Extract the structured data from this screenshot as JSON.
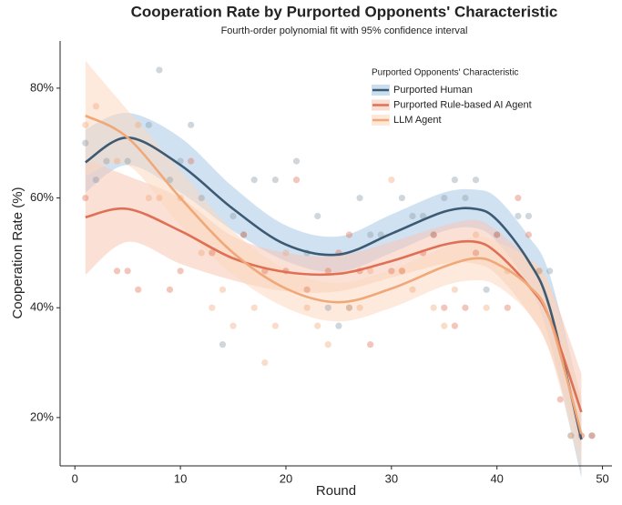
{
  "chart_data": {
    "type": "line",
    "title": "Cooperation Rate by Purported Opponents' Characteristic",
    "subtitle": "Fourth-order polynomial fit with 95% confidence interval",
    "x_label": "Round",
    "y_label": "Cooperation Rate (%)",
    "legend_title": "Purported Opponents' Characteristic",
    "legend_position": "upper right",
    "xlim": [
      -1.4,
      50.9
    ],
    "ylim": [
      11.2,
      88.6
    ],
    "xticks": [
      0,
      10,
      20,
      30,
      40,
      50
    ],
    "yticks": [
      {
        "value": 20,
        "label": "20%"
      },
      {
        "value": 40,
        "label": "40%"
      },
      {
        "value": 60,
        "label": "60%"
      },
      {
        "value": 80,
        "label": "80%"
      }
    ],
    "grid": false,
    "x": [
      1,
      5,
      10,
      15,
      20,
      25,
      30,
      35,
      38,
      40,
      43,
      45,
      48
    ],
    "series": [
      {
        "name": "Purported Human",
        "color": "#3d5a73",
        "band_color": "#a9c8e6",
        "values": [
          66.5,
          71,
          66,
          58,
          51.5,
          49.7,
          53.5,
          57.5,
          58,
          56,
          48.5,
          40,
          16
        ],
        "ci_lower": [
          61,
          66,
          61,
          54,
          48.5,
          46.5,
          50,
          54,
          54.5,
          52,
          44,
          34,
          9
        ],
        "ci_upper": [
          72.5,
          75.5,
          71,
          62,
          55,
          53,
          57,
          61,
          61.5,
          60,
          53,
          46,
          23
        ],
        "points_x": [
          1,
          2,
          3,
          5,
          7,
          8,
          9,
          10,
          11,
          12,
          14,
          15,
          16,
          17,
          19,
          21,
          22,
          23,
          24,
          25,
          26,
          27,
          28,
          29,
          31,
          32,
          33,
          34,
          35,
          36,
          37,
          38,
          39,
          40,
          42,
          43,
          44,
          45,
          47,
          49
        ],
        "points_y": [
          70,
          63.3,
          66.7,
          66.7,
          73.3,
          83.3,
          63.3,
          66.7,
          73.3,
          60,
          33.3,
          56.7,
          53.3,
          63.3,
          63.3,
          66.7,
          50,
          56.7,
          40,
          36.7,
          40,
          60,
          53.3,
          53.3,
          60,
          56.7,
          56.7,
          53.3,
          60,
          63.3,
          60,
          63.3,
          43.3,
          53.3,
          56.7,
          56.7,
          46.7,
          46.7,
          16.7,
          16.7
        ]
      },
      {
        "name": "Purported Rule-based AI Agent",
        "color": "#e07055",
        "band_color": "#f7c7b5",
        "values": [
          56.5,
          58,
          54,
          49,
          46.5,
          46.2,
          48.5,
          51.5,
          52,
          50,
          44,
          38,
          21
        ],
        "ci_lower": [
          46,
          52,
          48,
          45,
          43,
          43,
          45.5,
          48,
          48,
          46,
          39,
          32,
          14
        ],
        "ci_upper": [
          67,
          64,
          60,
          53,
          50,
          49.5,
          52,
          55,
          56,
          54,
          49,
          44,
          28
        ],
        "points_x": [
          1,
          4,
          5,
          6,
          9,
          10,
          11,
          13,
          16,
          18,
          20,
          21,
          22,
          24,
          25,
          26,
          27,
          28,
          30,
          31,
          33,
          34,
          35,
          36,
          37,
          38,
          40,
          41,
          42,
          43,
          46,
          48,
          49
        ],
        "points_y": [
          60,
          46.7,
          46.7,
          43.3,
          43.3,
          46.7,
          66.7,
          50,
          53.3,
          46.7,
          46.7,
          63.3,
          43.3,
          46.7,
          50,
          53.3,
          46.7,
          33.3,
          46.7,
          46.7,
          50,
          53.3,
          40,
          36.7,
          40,
          50,
          53.3,
          40,
          60,
          53.3,
          23.3,
          16.7,
          16.7
        ]
      },
      {
        "name": "LLM Agent",
        "color": "#f0a878",
        "band_color": "#fbd9c0",
        "values": [
          75,
          71,
          60,
          50,
          43.5,
          41,
          43.5,
          47.5,
          49,
          48,
          44,
          38,
          17
        ],
        "ci_lower": [
          64,
          66,
          55,
          46,
          40,
          37.5,
          40,
          44,
          45,
          44,
          39,
          32,
          10
        ],
        "ci_upper": [
          85,
          76,
          65,
          54,
          47,
          44.5,
          47,
          51,
          53,
          52,
          49,
          44,
          24
        ],
        "points_x": [
          1,
          2,
          4,
          6,
          7,
          8,
          10,
          12,
          13,
          14,
          15,
          17,
          18,
          19,
          20,
          22,
          23,
          24,
          26,
          27,
          28,
          30,
          31,
          32,
          34,
          35,
          36,
          38,
          39,
          41,
          44,
          47,
          48
        ],
        "points_y": [
          73.3,
          76.7,
          66.7,
          73.3,
          60,
          60,
          60,
          50,
          40,
          43.3,
          36.7,
          40,
          30,
          36.7,
          50,
          40,
          36.7,
          33.3,
          40,
          40,
          46.7,
          63.3,
          46.7,
          43.3,
          40,
          36.7,
          43.3,
          53.3,
          40,
          46.7,
          46.7,
          16.7,
          16.7
        ]
      }
    ]
  }
}
